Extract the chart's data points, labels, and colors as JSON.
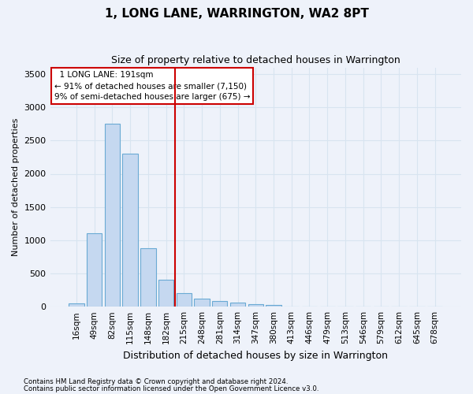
{
  "title": "1, LONG LANE, WARRINGTON, WA2 8PT",
  "subtitle": "Size of property relative to detached houses in Warrington",
  "xlabel": "Distribution of detached houses by size in Warrington",
  "ylabel": "Number of detached properties",
  "footnote1": "Contains HM Land Registry data © Crown copyright and database right 2024.",
  "footnote2": "Contains public sector information licensed under the Open Government Licence v3.0.",
  "bar_labels": [
    "16sqm",
    "49sqm",
    "82sqm",
    "115sqm",
    "148sqm",
    "182sqm",
    "215sqm",
    "248sqm",
    "281sqm",
    "314sqm",
    "347sqm",
    "380sqm",
    "413sqm",
    "446sqm",
    "479sqm",
    "513sqm",
    "546sqm",
    "579sqm",
    "612sqm",
    "645sqm",
    "678sqm"
  ],
  "bar_values": [
    50,
    1100,
    2750,
    2300,
    875,
    400,
    200,
    125,
    90,
    65,
    40,
    20,
    8,
    5,
    0,
    0,
    0,
    0,
    0,
    0,
    0
  ],
  "bar_color": "#c5d8f0",
  "bar_edge_color": "#6aaad4",
  "vline_color": "#cc0000",
  "ylim": [
    0,
    3600
  ],
  "yticks": [
    0,
    500,
    1000,
    1500,
    2000,
    2500,
    3000,
    3500
  ],
  "annotation_text": "  1 LONG LANE: 191sqm\n← 91% of detached houses are smaller (7,150)\n9% of semi-detached houses are larger (675) →",
  "annotation_fontsize": 7.5,
  "bg_color": "#eef2fa",
  "grid_color": "#d8e4f0",
  "title_fontsize": 11,
  "subtitle_fontsize": 9,
  "tick_fontsize": 7.5,
  "ytick_fontsize": 8,
  "ylabel_fontsize": 8,
  "xlabel_fontsize": 9
}
